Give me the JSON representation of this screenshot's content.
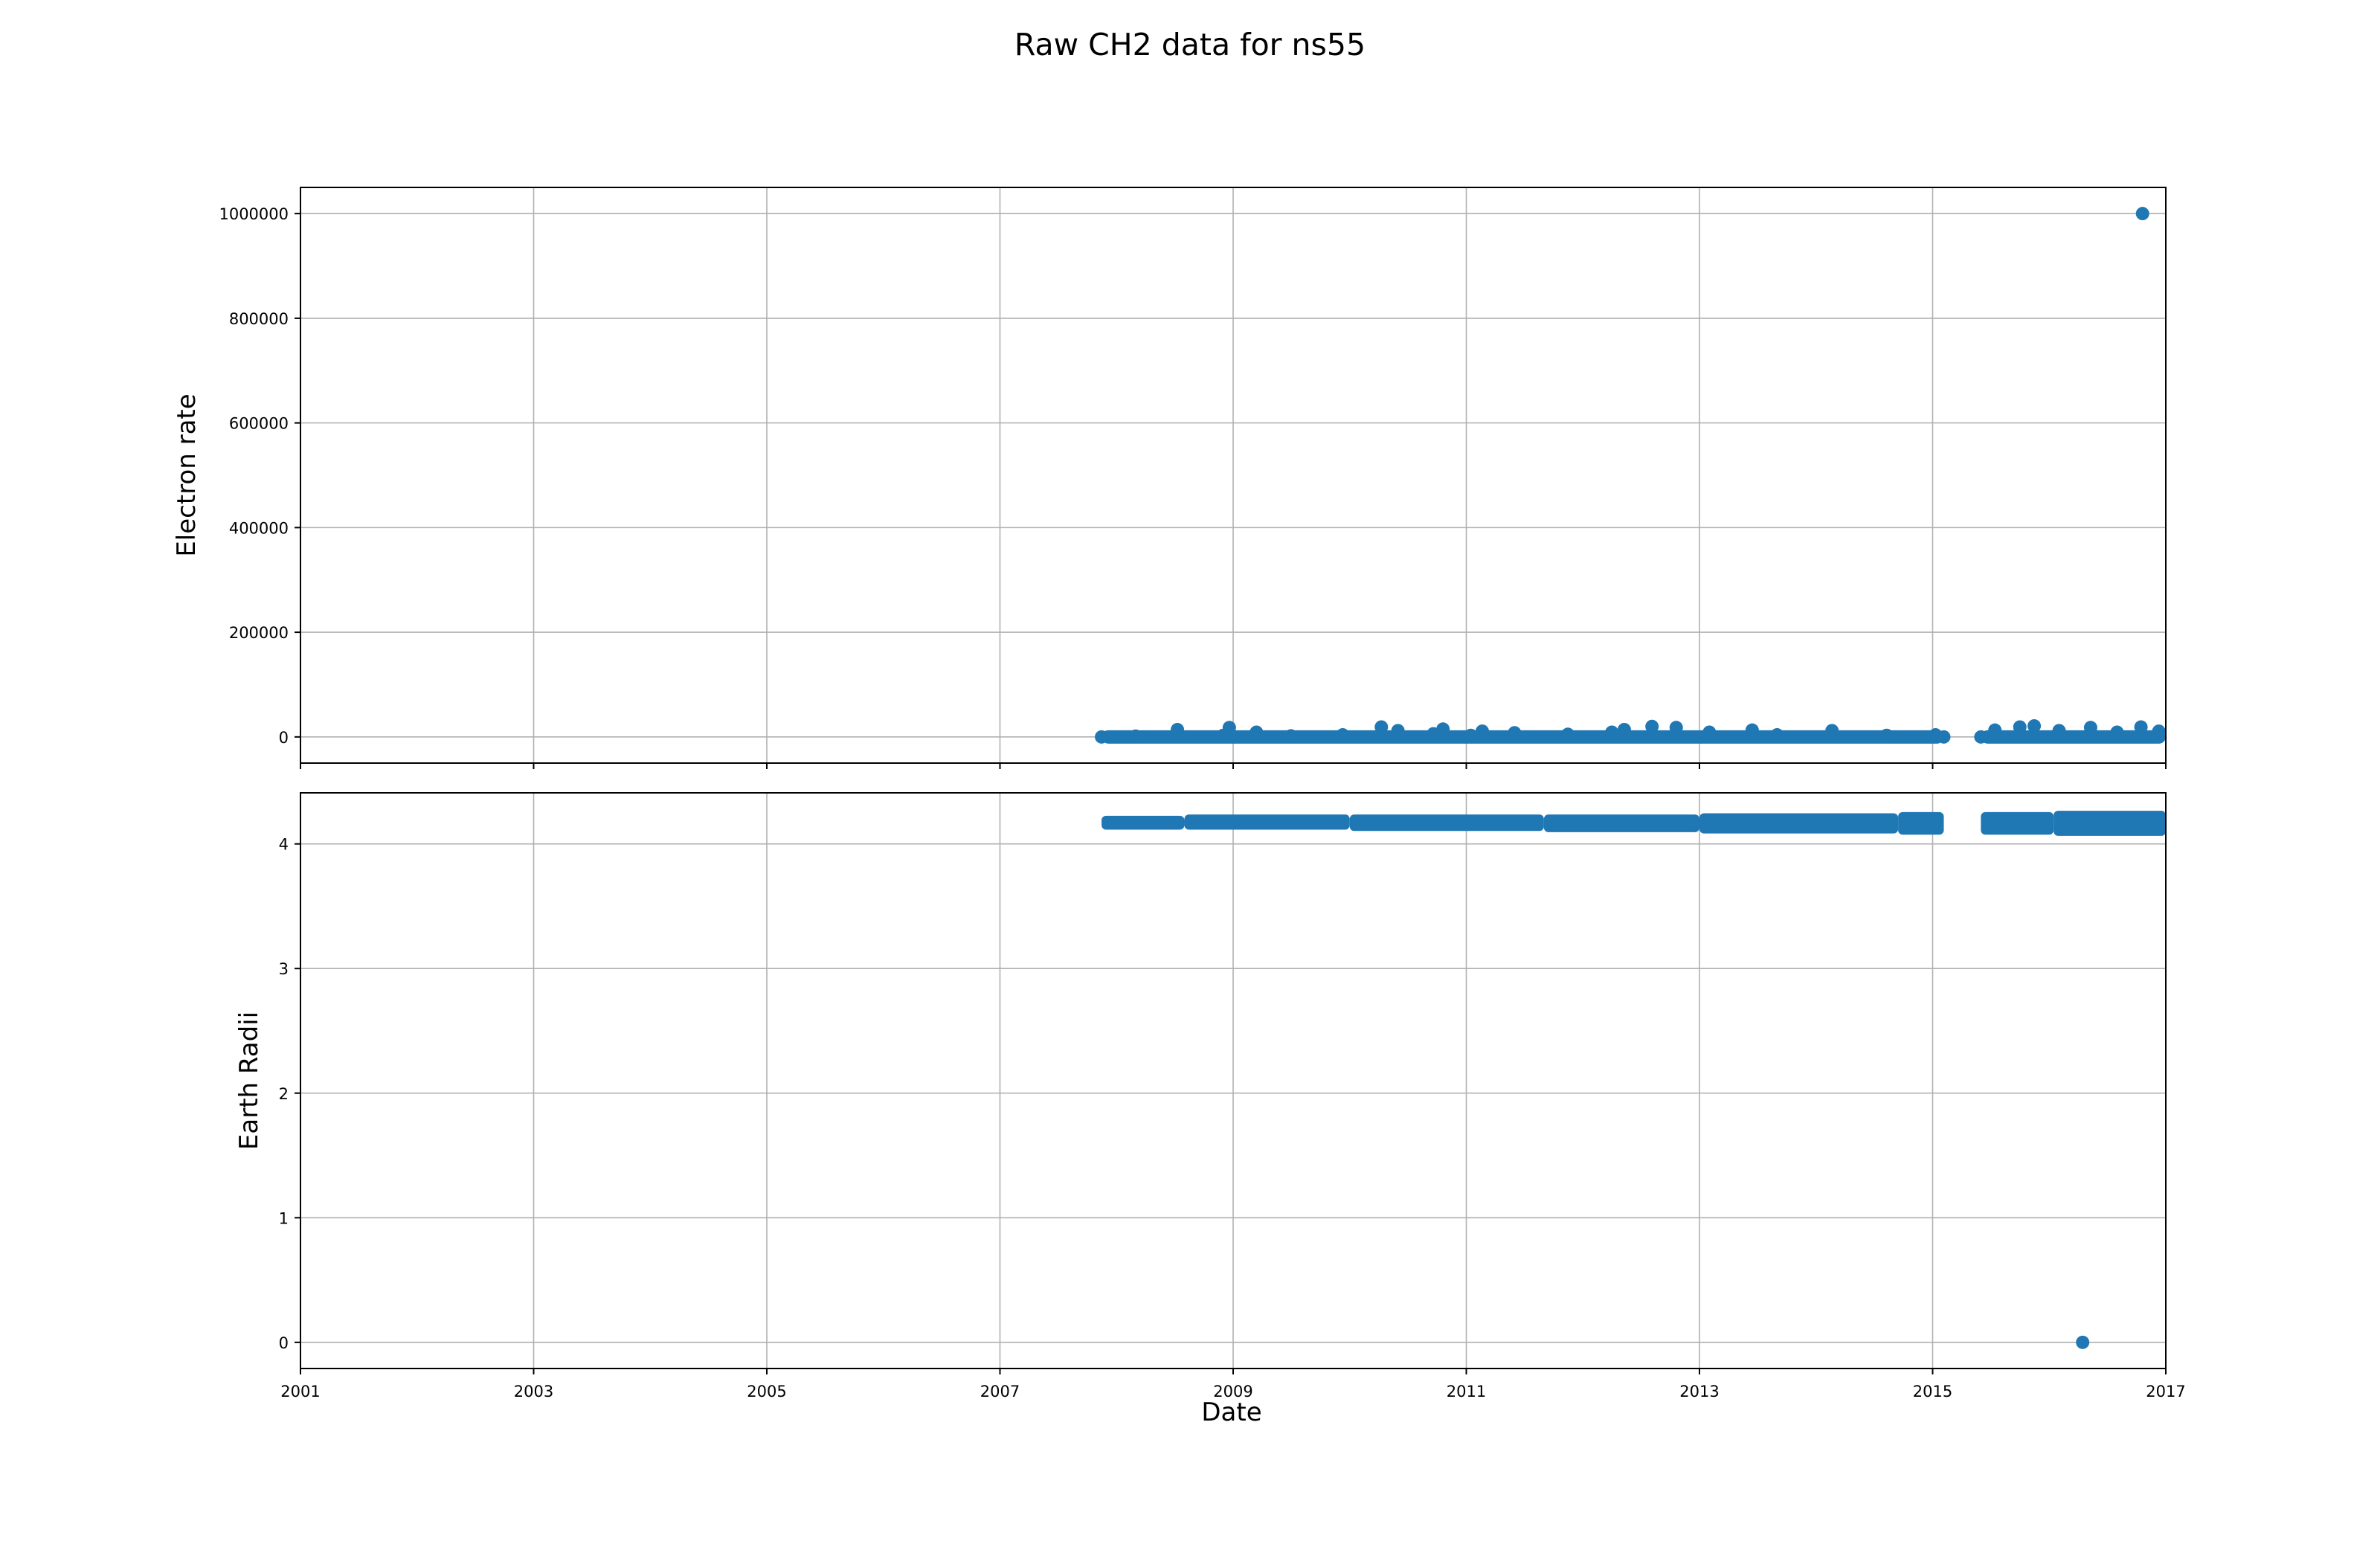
{
  "figure": {
    "title": "Raw CH2 data for ns55",
    "xlabel": "Date"
  },
  "style": {
    "marker_color": "#1f77b4",
    "grid_color": "#b0b0b0",
    "axis_color": "#000000"
  },
  "chart_data": [
    {
      "type": "scatter",
      "panel": "top",
      "title": "",
      "xlabel": "",
      "ylabel": "Electron rate",
      "x_range": [
        "2001-01-01",
        "2017-01-01"
      ],
      "ylim": [
        -50000,
        1050000
      ],
      "x_ticks": [
        "2001",
        "2003",
        "2005",
        "2007",
        "2009",
        "2011",
        "2013",
        "2015",
        "2017"
      ],
      "y_ticks": [
        0,
        200000,
        400000,
        600000,
        800000,
        1000000
      ],
      "y_tick_labels": [
        "0",
        "200000",
        "400000",
        "600000",
        "800000",
        "1000000"
      ],
      "show_x_tick_labels": false,
      "grid": true,
      "series": [
        {
          "coverage": [
            [
              "2007-11-15",
              "2015-02-05"
            ],
            [
              "2015-06-01",
              "2017-01-01"
            ]
          ],
          "points": [
            [
              "2007-11-15",
              0
            ],
            [
              "2008-03-01",
              1500
            ],
            [
              "2008-07-10",
              14000
            ],
            [
              "2008-12-01",
              3000
            ],
            [
              "2008-12-20",
              18000
            ],
            [
              "2009-03-15",
              9000
            ],
            [
              "2009-07-01",
              2000
            ],
            [
              "2009-12-10",
              4000
            ],
            [
              "2010-04-10",
              19000
            ],
            [
              "2010-06-01",
              12000
            ],
            [
              "2010-09-20",
              6000
            ],
            [
              "2010-10-20",
              15000
            ],
            [
              "2011-01-15",
              3000
            ],
            [
              "2011-02-20",
              11000
            ],
            [
              "2011-06-01",
              8000
            ],
            [
              "2011-11-15",
              5000
            ],
            [
              "2012-04-01",
              9000
            ],
            [
              "2012-05-10",
              14000
            ],
            [
              "2012-08-05",
              20000
            ],
            [
              "2012-10-20",
              18000
            ],
            [
              "2013-02-01",
              9000
            ],
            [
              "2013-06-15",
              13000
            ],
            [
              "2013-09-01",
              4000
            ],
            [
              "2014-02-20",
              12000
            ],
            [
              "2014-08-10",
              3000
            ],
            [
              "2015-01-10",
              4000
            ],
            [
              "2015-02-05",
              0
            ],
            [
              "2015-06-01",
              0
            ],
            [
              "2015-07-15",
              13000
            ],
            [
              "2015-10-01",
              19000
            ],
            [
              "2015-11-15",
              21000
            ],
            [
              "2016-02-01",
              12000
            ],
            [
              "2016-05-10",
              18000
            ],
            [
              "2016-08-01",
              9000
            ],
            [
              "2016-10-15",
              19000
            ],
            [
              "2016-12-10",
              11000
            ],
            [
              "2016-10-20",
              1000000
            ]
          ]
        }
      ]
    },
    {
      "type": "scatter",
      "panel": "bottom",
      "title": "",
      "xlabel": "Date",
      "ylabel": "Earth Radii",
      "x_range": [
        "2001-01-01",
        "2017-01-01"
      ],
      "ylim": [
        -0.21,
        4.41
      ],
      "x_ticks": [
        "2001",
        "2003",
        "2005",
        "2007",
        "2009",
        "2011",
        "2013",
        "2015",
        "2017"
      ],
      "y_ticks": [
        0,
        1,
        2,
        3,
        4
      ],
      "y_tick_labels": [
        "0",
        "1",
        "2",
        "3",
        "4"
      ],
      "show_x_tick_labels": true,
      "grid": true,
      "series": [
        {
          "bands": [
            {
              "from": "2007-11-15",
              "to": "2008-08-01",
              "low": 4.15,
              "high": 4.19
            },
            {
              "from": "2008-08-01",
              "to": "2010-01-01",
              "low": 4.15,
              "high": 4.2
            },
            {
              "from": "2010-01-01",
              "to": "2011-09-01",
              "low": 4.14,
              "high": 4.2
            },
            {
              "from": "2011-09-01",
              "to": "2013-01-01",
              "low": 4.13,
              "high": 4.2
            },
            {
              "from": "2013-01-01",
              "to": "2014-09-15",
              "low": 4.12,
              "high": 4.21
            },
            {
              "from": "2014-09-15",
              "to": "2015-02-05",
              "low": 4.11,
              "high": 4.22
            },
            {
              "from": "2015-06-01",
              "to": "2016-01-15",
              "low": 4.11,
              "high": 4.22
            },
            {
              "from": "2016-01-15",
              "to": "2017-01-01",
              "low": 4.1,
              "high": 4.23
            }
          ],
          "points": [
            [
              "2016-04-15",
              0
            ]
          ]
        }
      ]
    }
  ]
}
